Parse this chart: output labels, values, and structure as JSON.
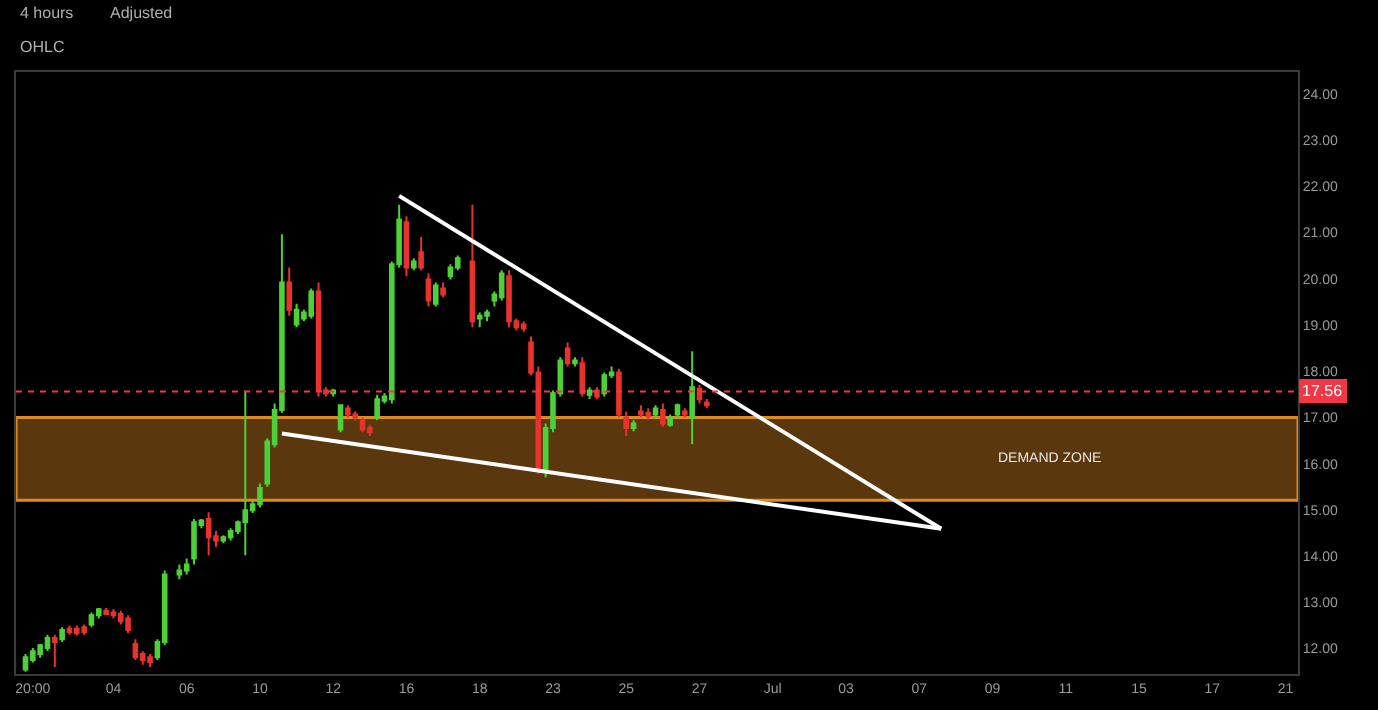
{
  "chart_data": {
    "type": "candlestick",
    "annotations": [
      "4 hours",
      "Adjusted",
      "OHLC"
    ],
    "bands": [
      {
        "axis": "y",
        "from": 15.21,
        "to": 17.0,
        "label": "DEMAND ZONE",
        "color": "#e08a1e"
      }
    ],
    "categories": [
      null,
      "20:00",
      null,
      null,
      null,
      null,
      null,
      null,
      null,
      null,
      null,
      null,
      "04",
      null,
      null,
      null,
      null,
      null,
      null,
      null,
      null,
      null,
      "06",
      null,
      null,
      null,
      null,
      null,
      null,
      null,
      null,
      null,
      "10",
      null,
      null,
      null,
      null,
      null,
      null,
      null,
      null,
      null,
      "12",
      null,
      null,
      null,
      null,
      null,
      null,
      null,
      null,
      null,
      "16",
      null,
      null,
      null,
      null,
      null,
      null,
      null,
      null,
      null,
      "18",
      null,
      null,
      null,
      null,
      null,
      null,
      null,
      null,
      null,
      "23",
      null,
      null,
      null,
      null,
      null,
      null,
      null,
      null,
      null,
      "25",
      null,
      null,
      null,
      null,
      null,
      null,
      null,
      null,
      null,
      "27",
      null,
      null,
      null,
      null,
      null,
      null,
      null,
      null,
      null,
      "Jul",
      null,
      null,
      null,
      null,
      null,
      null,
      null,
      null,
      null,
      "03",
      null,
      null,
      null,
      null,
      null,
      null,
      null,
      null,
      null,
      "07",
      null,
      null,
      null,
      null,
      null,
      null,
      null,
      null,
      null,
      "09",
      null,
      null,
      null,
      null,
      null,
      null,
      null,
      null,
      null,
      "11",
      null,
      null,
      null,
      null,
      null,
      null,
      null,
      null,
      null,
      "15",
      null,
      null,
      null,
      null,
      null,
      null,
      null,
      null,
      null,
      "17",
      null,
      null,
      null,
      null,
      null,
      null,
      null,
      null,
      null,
      "21",
      null
    ],
    "ohlc": [
      [
        11.55,
        11.88,
        11.5,
        11.81
      ],
      [
        11.75,
        12.01,
        11.7,
        11.94
      ],
      [
        11.88,
        12.1,
        11.8,
        12.07
      ],
      [
        12.01,
        12.3,
        11.95,
        12.23
      ],
      [
        12.23,
        12.3,
        11.6,
        12.14
      ],
      [
        12.2,
        12.46,
        12.14,
        12.4
      ],
      [
        12.43,
        12.5,
        12.3,
        12.36
      ],
      [
        12.43,
        12.5,
        12.28,
        12.33
      ],
      [
        12.46,
        12.52,
        12.3,
        12.36
      ],
      [
        12.52,
        12.78,
        12.46,
        12.72
      ],
      [
        12.72,
        12.88,
        12.65,
        12.85
      ],
      [
        12.82,
        12.88,
        12.72,
        12.75
      ],
      [
        12.78,
        12.85,
        12.65,
        12.72
      ],
      [
        12.75,
        12.82,
        12.52,
        12.59
      ],
      [
        12.65,
        12.72,
        12.33,
        12.4
      ],
      [
        12.1,
        12.2,
        11.75,
        11.81
      ],
      [
        11.88,
        11.94,
        11.65,
        11.75
      ],
      [
        11.81,
        11.88,
        11.6,
        11.71
      ],
      [
        11.81,
        12.2,
        11.75,
        12.14
      ],
      [
        12.14,
        13.69,
        12.07,
        13.6
      ],
      null,
      [
        13.6,
        13.82,
        13.5,
        13.69
      ],
      [
        13.69,
        13.95,
        13.6,
        13.82
      ],
      [
        13.95,
        14.8,
        13.82,
        14.73
      ],
      [
        14.67,
        14.8,
        14.6,
        14.77
      ],
      [
        14.8,
        14.95,
        14.02,
        14.41
      ],
      [
        14.43,
        14.54,
        14.2,
        14.34
      ],
      [
        14.34,
        14.45,
        14.28,
        14.41
      ],
      [
        14.41,
        14.6,
        14.34,
        14.54
      ],
      [
        14.54,
        14.77,
        14.48,
        14.73
      ],
      [
        14.73,
        17.58,
        14.02,
        14.99
      ],
      [
        14.99,
        15.2,
        14.93,
        15.12
      ],
      [
        15.12,
        15.57,
        15.05,
        15.47
      ],
      [
        15.57,
        16.55,
        15.5,
        16.48
      ],
      [
        16.42,
        17.3,
        16.35,
        17.16
      ],
      [
        17.16,
        20.96,
        17.1,
        19.92
      ],
      [
        19.92,
        20.24,
        19.2,
        19.33
      ],
      [
        19.01,
        19.46,
        18.95,
        19.33
      ],
      [
        19.14,
        19.33,
        19.08,
        19.27
      ],
      [
        19.2,
        19.79,
        19.14,
        19.72
      ],
      [
        19.72,
        19.92,
        17.45,
        17.58
      ],
      [
        17.58,
        17.65,
        17.45,
        17.52
      ],
      [
        17.52,
        17.62,
        17.45,
        17.58
      ],
      [
        16.74,
        17.26,
        16.68,
        17.26
      ],
      [
        17.19,
        17.26,
        17.0,
        17.06
      ],
      [
        17.06,
        17.13,
        16.94,
        17.0
      ],
      [
        16.94,
        17.0,
        16.68,
        16.74
      ],
      [
        16.77,
        16.84,
        16.6,
        16.68
      ],
      [
        17.0,
        17.49,
        16.94,
        17.39
      ],
      [
        17.36,
        17.52,
        17.3,
        17.45
      ],
      [
        17.39,
        20.37,
        17.3,
        20.31
      ],
      [
        20.31,
        21.6,
        20.24,
        21.28
      ],
      [
        21.22,
        21.35,
        20.05,
        20.24
      ],
      [
        20.24,
        20.44,
        20.18,
        20.37
      ],
      [
        20.57,
        20.9,
        20.18,
        20.24
      ],
      [
        19.98,
        20.11,
        19.4,
        19.53
      ],
      [
        19.46,
        19.92,
        19.4,
        19.85
      ],
      [
        19.79,
        19.92,
        19.6,
        19.66
      ],
      [
        20.05,
        20.31,
        19.98,
        20.24
      ],
      [
        20.24,
        20.5,
        20.18,
        20.44
      ],
      null,
      [
        20.37,
        21.6,
        18.95,
        19.08
      ],
      [
        19.14,
        19.27,
        18.95,
        19.2
      ],
      [
        19.2,
        19.33,
        19.08,
        19.27
      ],
      [
        19.53,
        19.72,
        19.4,
        19.66
      ],
      [
        19.6,
        20.18,
        19.53,
        20.11
      ],
      [
        20.05,
        20.18,
        18.95,
        19.08
      ],
      [
        19.08,
        19.14,
        18.88,
        18.95
      ],
      [
        19.01,
        19.08,
        18.85,
        18.92
      ],
      [
        18.62,
        18.75,
        17.91,
        17.97
      ],
      [
        17.97,
        18.1,
        15.77,
        15.9
      ],
      [
        15.83,
        16.87,
        15.7,
        16.77
      ],
      [
        16.77,
        17.58,
        16.68,
        17.52
      ],
      [
        17.52,
        18.3,
        17.45,
        18.23
      ],
      [
        18.49,
        18.62,
        18.1,
        18.17
      ],
      [
        18.17,
        18.3,
        18.1,
        18.23
      ],
      [
        18.17,
        18.3,
        17.45,
        17.52
      ],
      [
        17.49,
        17.65,
        17.4,
        17.58
      ],
      [
        17.58,
        17.65,
        17.39,
        17.45
      ],
      [
        17.52,
        17.97,
        17.45,
        17.91
      ],
      [
        17.91,
        18.1,
        17.85,
        17.97
      ],
      [
        17.97,
        18.05,
        17.0,
        17.06
      ],
      [
        17.0,
        17.13,
        16.6,
        16.77
      ],
      [
        16.77,
        16.94,
        16.7,
        16.87
      ],
      [
        17.13,
        17.26,
        17.0,
        17.06
      ],
      [
        17.1,
        17.2,
        16.95,
        17.03
      ],
      [
        17.06,
        17.26,
        17.0,
        17.19
      ],
      [
        17.16,
        17.3,
        16.8,
        16.87
      ],
      [
        16.84,
        17.06,
        16.8,
        17.0
      ],
      [
        17.06,
        17.3,
        17.0,
        17.26
      ],
      [
        17.13,
        17.2,
        17.0,
        17.06
      ],
      [
        17.0,
        18.43,
        16.42,
        17.65
      ],
      [
        17.62,
        17.7,
        17.3,
        17.39
      ],
      [
        17.32,
        17.4,
        17.2,
        17.26
      ],
      null,
      null,
      null,
      null,
      null,
      null,
      null,
      null,
      null,
      null,
      null,
      null,
      null,
      null,
      null,
      null,
      null,
      null,
      null,
      null,
      null,
      null,
      null,
      null,
      null,
      null,
      null,
      null,
      null,
      null,
      null,
      null,
      null,
      null,
      null,
      null,
      null,
      null,
      null,
      null,
      null,
      null,
      null,
      null,
      null,
      null,
      null,
      null,
      null,
      null,
      null,
      null,
      null,
      null,
      null,
      null,
      null,
      null,
      null,
      null,
      null,
      null,
      null,
      null,
      null,
      null,
      null,
      null,
      null,
      null,
      null,
      null,
      null,
      null,
      null,
      null,
      null,
      null,
      null,
      null
    ],
    "series": [
      {
        "type": "line",
        "color": "#ffffff",
        "values": [
          null,
          null,
          null,
          null,
          null,
          null,
          null,
          null,
          null,
          null,
          null,
          null,
          null,
          null,
          null,
          null,
          null,
          null,
          null,
          null,
          null,
          null,
          null,
          null,
          null,
          null,
          null,
          null,
          null,
          null,
          null,
          null,
          null,
          null,
          null,
          null,
          null,
          null,
          null,
          null,
          null,
          null,
          null,
          null,
          null,
          null,
          null,
          null,
          null,
          null,
          null,
          21.79,
          null,
          null,
          null,
          null,
          null,
          null,
          null,
          null,
          null,
          null,
          null,
          null,
          null,
          null,
          null,
          null,
          null,
          null,
          null,
          null,
          null,
          null,
          null,
          null,
          null,
          null,
          null,
          null,
          null,
          null,
          null,
          null,
          null,
          null,
          null,
          null,
          null,
          null,
          null,
          null,
          null,
          null,
          null,
          null,
          null,
          null,
          null,
          null,
          null,
          null,
          null,
          null,
          null,
          null,
          null,
          null,
          null,
          null,
          null,
          null,
          null,
          null,
          null,
          null,
          null,
          null,
          null,
          null,
          null,
          null,
          null,
          null,
          null,
          14.59,
          null,
          null,
          null,
          null,
          null,
          null,
          null,
          null,
          null,
          null,
          null,
          null,
          null,
          null,
          null,
          null,
          null,
          null,
          null,
          null,
          null,
          null,
          null,
          null,
          null,
          null,
          null,
          null,
          null,
          null,
          null,
          null,
          null,
          null,
          null,
          null,
          null,
          null,
          null,
          null,
          null,
          null,
          null,
          null,
          null,
          null,
          null,
          null
        ]
      },
      {
        "type": "line",
        "color": "#ffffff",
        "values": [
          null,
          null,
          null,
          null,
          null,
          null,
          null,
          null,
          null,
          null,
          null,
          null,
          null,
          null,
          null,
          null,
          null,
          null,
          null,
          null,
          null,
          null,
          null,
          null,
          null,
          null,
          null,
          null,
          null,
          null,
          null,
          null,
          null,
          null,
          null,
          16.65,
          null,
          null,
          null,
          null,
          null,
          null,
          null,
          null,
          null,
          null,
          null,
          null,
          null,
          null,
          null,
          null,
          null,
          null,
          null,
          null,
          null,
          null,
          null,
          null,
          null,
          null,
          null,
          null,
          null,
          null,
          null,
          null,
          null,
          null,
          null,
          null,
          null,
          null,
          null,
          null,
          null,
          null,
          null,
          null,
          null,
          null,
          null,
          null,
          null,
          null,
          null,
          null,
          null,
          null,
          null,
          null,
          null,
          null,
          null,
          null,
          null,
          null,
          null,
          null,
          null,
          null,
          null,
          null,
          null,
          null,
          null,
          null,
          null,
          null,
          null,
          null,
          null,
          null,
          null,
          null,
          null,
          null,
          null,
          null,
          null,
          null,
          null,
          null,
          null,
          14.59,
          null,
          null,
          null,
          null,
          null,
          null,
          null,
          null,
          null,
          null,
          null,
          null,
          null,
          null,
          null,
          null,
          null,
          null,
          null,
          null,
          null,
          null,
          null,
          null,
          null,
          null,
          null,
          null,
          null,
          null,
          null,
          null,
          null,
          null,
          null,
          null,
          null,
          null,
          null,
          null,
          null,
          null,
          null,
          null,
          null,
          null,
          null,
          null
        ]
      }
    ],
    "ylim": [
      11.45,
      24.47
    ],
    "yticks": [
      {
        "value": 12,
        "label": "12.00"
      },
      {
        "value": 13,
        "label": "13.00"
      },
      {
        "value": 14,
        "label": "14.00"
      },
      {
        "value": 15,
        "label": "15.00"
      },
      {
        "value": 16,
        "label": "16.00"
      },
      {
        "value": 17,
        "label": "17.00"
      },
      {
        "value": 18,
        "label": "18.00"
      },
      {
        "value": 19,
        "label": "19.00"
      },
      {
        "value": 20,
        "label": "20.00"
      },
      {
        "value": 21,
        "label": "21.00"
      },
      {
        "value": 22,
        "label": "22.00"
      },
      {
        "value": 23,
        "label": "23.00"
      },
      {
        "value": 24,
        "label": "24.00"
      }
    ],
    "ref_lines": [
      {
        "axis": "y",
        "value": 17.56,
        "label": "17.56",
        "color": "#f23645"
      }
    ]
  }
}
